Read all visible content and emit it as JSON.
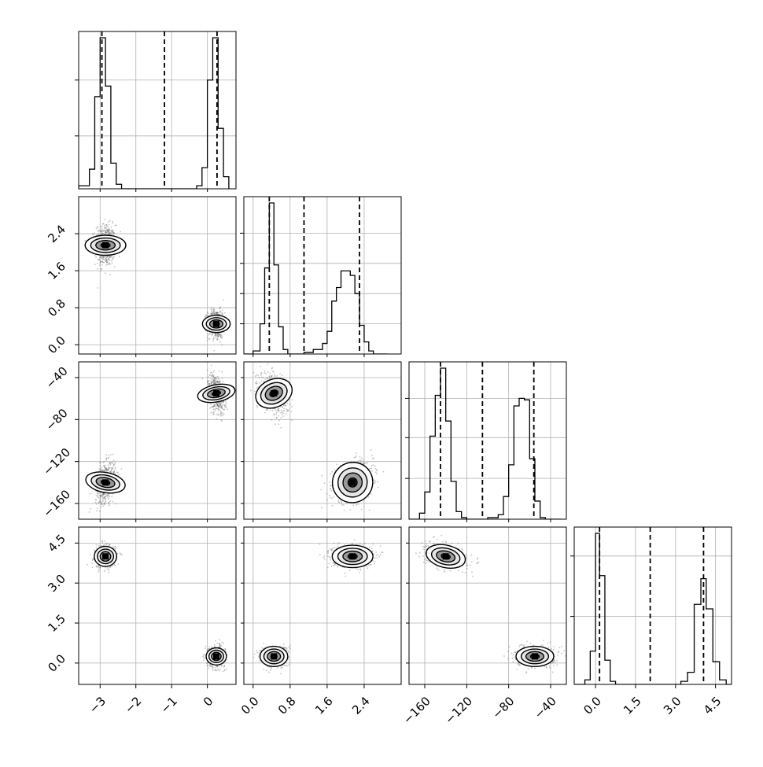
{
  "chart_data": {
    "type": "corner",
    "title": "",
    "variables": [
      {
        "label": "",
        "range": [
          -3.6,
          0.8
        ],
        "ticks": [
          "−3",
          "−2",
          "−1",
          "0"
        ],
        "tick_values": [
          -3,
          -2,
          -1,
          0
        ],
        "quantile_lines": [
          -2.95,
          -1.2,
          0.27
        ],
        "histogram": {
          "bin_edges": [
            -3.6,
            -3.3,
            -3.15,
            -3.0,
            -2.85,
            -2.7,
            -2.55,
            -2.4,
            -2.25,
            -2.1,
            -0.3,
            -0.15,
            0.0,
            0.15,
            0.3,
            0.45,
            0.6
          ],
          "counts": [
            2,
            13,
            61,
            100,
            68,
            17,
            3,
            0,
            0,
            0,
            2,
            14,
            72,
            100,
            40,
            8
          ]
        },
        "hist_yticks": [
          0.35,
          0.72
        ]
      },
      {
        "label": "",
        "range": [
          -0.2,
          3.2
        ],
        "ticks": [
          "0.0",
          "0.8",
          "1.6",
          "2.4"
        ],
        "tick_values": [
          0.0,
          0.8,
          1.6,
          2.4
        ],
        "quantile_lines": [
          0.35,
          1.1,
          2.3
        ],
        "histogram": {
          "bin_edges": [
            -0.2,
            0.0,
            0.15,
            0.25,
            0.35,
            0.45,
            0.55,
            0.65,
            0.75,
            0.85,
            1.1,
            1.3,
            1.5,
            1.6,
            1.7,
            1.8,
            1.9,
            2.0,
            2.1,
            2.2,
            2.3,
            2.4,
            2.5,
            2.6,
            2.7,
            2.9
          ],
          "counts": [
            0,
            2,
            20,
            57,
            100,
            59,
            18,
            3,
            0,
            0,
            1,
            3,
            7,
            15,
            35,
            44,
            55,
            55,
            52,
            40,
            19,
            8,
            2,
            0,
            0
          ]
        },
        "hist_yticks": [
          0.2,
          0.4,
          0.6,
          0.8
        ]
      },
      {
        "label": "",
        "range": [
          -175,
          -25
        ],
        "ticks": [
          "−160",
          "−120",
          "−80",
          "−40"
        ],
        "tick_values": [
          -160,
          -120,
          -80,
          -40
        ],
        "quantile_lines": [
          -145,
          -105,
          -56
        ],
        "histogram": {
          "bin_edges": [
            -175,
            -165,
            -160,
            -155,
            -150,
            -145,
            -140,
            -135,
            -130,
            -125,
            -120,
            -115,
            -100,
            -90,
            -85,
            -80,
            -75,
            -70,
            -65,
            -60,
            -55,
            -50,
            -45,
            -40,
            -35,
            -30
          ],
          "counts": [
            0,
            4,
            18,
            55,
            82,
            100,
            65,
            25,
            5,
            1,
            0,
            0,
            1,
            3,
            15,
            36,
            75,
            80,
            79,
            40,
            12,
            1,
            0,
            0,
            0
          ]
        },
        "hist_yticks": [
          0.27,
          0.54,
          0.8
        ]
      },
      {
        "label": "",
        "range": [
          -0.8,
          5.1
        ],
        "ticks": [
          "0.0",
          "1.5",
          "3.0",
          "4.5"
        ],
        "tick_values": [
          0.0,
          1.5,
          3.0,
          4.5
        ],
        "quantile_lines": [
          0.15,
          2.05,
          4.05
        ],
        "histogram": {
          "bin_edges": [
            -0.8,
            -0.4,
            -0.2,
            0.0,
            0.15,
            0.35,
            0.55,
            0.75,
            1.0,
            3.2,
            3.45,
            3.7,
            3.95,
            4.15,
            4.4,
            4.65,
            4.9,
            5.1
          ],
          "counts": [
            0,
            3,
            22,
            100,
            72,
            16,
            2,
            0,
            0,
            2,
            8,
            53,
            70,
            50,
            15,
            3,
            0
          ]
        },
        "hist_yticks": [
          0.45,
          0.85
        ]
      }
    ],
    "clusters": [
      {
        "mean": [
          -2.85,
          2.15,
          -140,
          4.0
        ],
        "sd": [
          0.14,
          0.22,
          9.5,
          0.21
        ]
      },
      {
        "mean": [
          0.25,
          0.45,
          -55,
          0.25
        ],
        "sd": [
          0.12,
          0.15,
          9.0,
          0.19
        ]
      }
    ],
    "cluster_correlations": [
      {
        "0,1": 0.0,
        "0,2": 0.3,
        "0,3": 0.0,
        "1,2": 0.3,
        "1,3": 0.0,
        "2,3": -0.3
      },
      {
        "0,1": 0.0,
        "0,2": -0.35,
        "0,3": 0.0,
        "1,2": -0.35,
        "1,3": 0.0,
        "2,3": 0.0
      }
    ],
    "grid": true,
    "contour_levels": [
      0.12,
      0.4,
      0.7,
      0.9
    ],
    "colors": {
      "line": "#000000",
      "grid": "#b0b0b0",
      "scatter": "#555555",
      "background": "#ffffff"
    }
  }
}
